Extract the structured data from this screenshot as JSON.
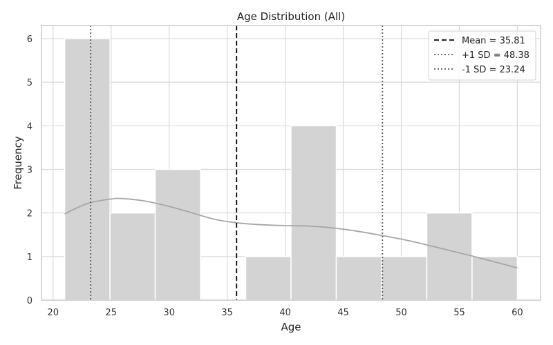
{
  "chart_data": {
    "type": "histogram",
    "title": "Age Distribution (All)",
    "xlabel": "Age",
    "ylabel": "Frequency",
    "xlim": [
      19.0,
      62.0
    ],
    "ylim": [
      0,
      6.3
    ],
    "x_ticks": [
      20,
      25,
      30,
      35,
      40,
      45,
      50,
      55,
      60
    ],
    "y_ticks": [
      0,
      1,
      2,
      3,
      4,
      5,
      6
    ],
    "grid": true,
    "legend_position": "top-right",
    "bins": [
      {
        "start": 21.0,
        "end": 24.9,
        "count": 6
      },
      {
        "start": 24.9,
        "end": 28.8,
        "count": 2
      },
      {
        "start": 28.8,
        "end": 32.7,
        "count": 3
      },
      {
        "start": 32.7,
        "end": 36.6,
        "count": 0
      },
      {
        "start": 36.6,
        "end": 40.5,
        "count": 1
      },
      {
        "start": 40.5,
        "end": 44.4,
        "count": 4
      },
      {
        "start": 44.4,
        "end": 48.3,
        "count": 1
      },
      {
        "start": 48.3,
        "end": 52.2,
        "count": 1
      },
      {
        "start": 52.2,
        "end": 56.1,
        "count": 2
      },
      {
        "start": 56.1,
        "end": 60.0,
        "count": 1
      }
    ],
    "kde_curve": {
      "x": [
        21,
        23,
        25,
        26,
        28,
        30,
        32,
        34,
        36,
        38,
        40,
        42,
        44,
        46,
        48,
        50,
        52,
        54,
        56,
        58,
        60
      ],
      "y": [
        1.98,
        2.22,
        2.32,
        2.33,
        2.27,
        2.15,
        2.0,
        1.85,
        1.77,
        1.73,
        1.71,
        1.7,
        1.66,
        1.59,
        1.5,
        1.4,
        1.28,
        1.15,
        1.02,
        0.88,
        0.74
      ]
    },
    "reference_lines": [
      {
        "label": "Mean = 35.81",
        "x": 35.81,
        "style": "dashed",
        "color": "#000000"
      },
      {
        "label": "+1 SD = 48.38",
        "x": 48.38,
        "style": "dotted",
        "color": "#555555"
      },
      {
        "label": "-1 SD = 23.24",
        "x": 23.24,
        "style": "dotted",
        "color": "#555555"
      }
    ],
    "colors": {
      "bar_fill": "#d3d3d3",
      "bar_edge": "#ffffff",
      "kde_line": "#a6a6a6",
      "grid": "#d9d9d9",
      "frame": "#cccccc"
    }
  }
}
